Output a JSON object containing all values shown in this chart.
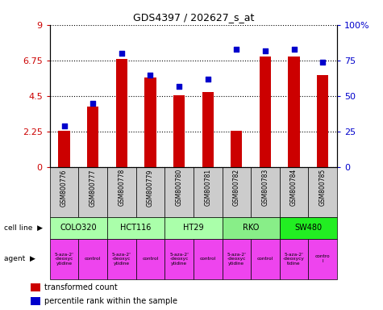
{
  "title": "GDS4397 / 202627_s_at",
  "samples": [
    "GSM800776",
    "GSM800777",
    "GSM800778",
    "GSM800779",
    "GSM800780",
    "GSM800781",
    "GSM800782",
    "GSM800783",
    "GSM800784",
    "GSM800785"
  ],
  "transformed_count": [
    2.3,
    3.85,
    6.85,
    5.65,
    4.55,
    4.75,
    2.3,
    7.0,
    7.0,
    5.85
  ],
  "percentile_rank": [
    29,
    45,
    80,
    65,
    57,
    62,
    83,
    82,
    83,
    74
  ],
  "red_color": "#cc0000",
  "blue_color": "#0000cc",
  "ylim_left": [
    0,
    9
  ],
  "ylim_right": [
    0,
    100
  ],
  "yticks_left": [
    0,
    2.25,
    4.5,
    6.75,
    9
  ],
  "ytick_labels_left": [
    "0",
    "2.25",
    "4.5",
    "6.75",
    "9"
  ],
  "yticks_right": [
    0,
    25,
    50,
    75,
    100
  ],
  "ytick_labels_right": [
    "0",
    "25",
    "50",
    "75",
    "100%"
  ],
  "cell_lines": [
    {
      "name": "COLO320",
      "start": 0,
      "end": 2,
      "color": "#aaffaa"
    },
    {
      "name": "HCT116",
      "start": 2,
      "end": 4,
      "color": "#aaffaa"
    },
    {
      "name": "HT29",
      "start": 4,
      "end": 6,
      "color": "#aaffaa"
    },
    {
      "name": "RKO",
      "start": 6,
      "end": 8,
      "color": "#88ee88"
    },
    {
      "name": "SW480",
      "start": 8,
      "end": 10,
      "color": "#22ee22"
    }
  ],
  "agents": [
    {
      "name": "5-aza-2'\n-deoxyc\nytidine",
      "start": 0,
      "end": 1,
      "color": "#ee44ee"
    },
    {
      "name": "control",
      "start": 1,
      "end": 2,
      "color": "#ee44ee"
    },
    {
      "name": "5-aza-2'\n-deoxyc\nytidine",
      "start": 2,
      "end": 3,
      "color": "#ee44ee"
    },
    {
      "name": "control",
      "start": 3,
      "end": 4,
      "color": "#ee44ee"
    },
    {
      "name": "5-aza-2'\n-deoxyc\nytidine",
      "start": 4,
      "end": 5,
      "color": "#ee44ee"
    },
    {
      "name": "control",
      "start": 5,
      "end": 6,
      "color": "#ee44ee"
    },
    {
      "name": "5-aza-2'\n-deoxyc\nytidine",
      "start": 6,
      "end": 7,
      "color": "#ee44ee"
    },
    {
      "name": "control",
      "start": 7,
      "end": 8,
      "color": "#ee44ee"
    },
    {
      "name": "5-aza-2'\n-deoxycy\ntidine",
      "start": 8,
      "end": 9,
      "color": "#ee44ee"
    },
    {
      "name": "contro\nl",
      "start": 9,
      "end": 10,
      "color": "#ee44ee"
    }
  ],
  "bar_width": 0.4,
  "sample_bg_color": "#cccccc",
  "white": "#ffffff",
  "legend_red_text": "transformed count",
  "legend_blue_text": "percentile rank within the sample"
}
